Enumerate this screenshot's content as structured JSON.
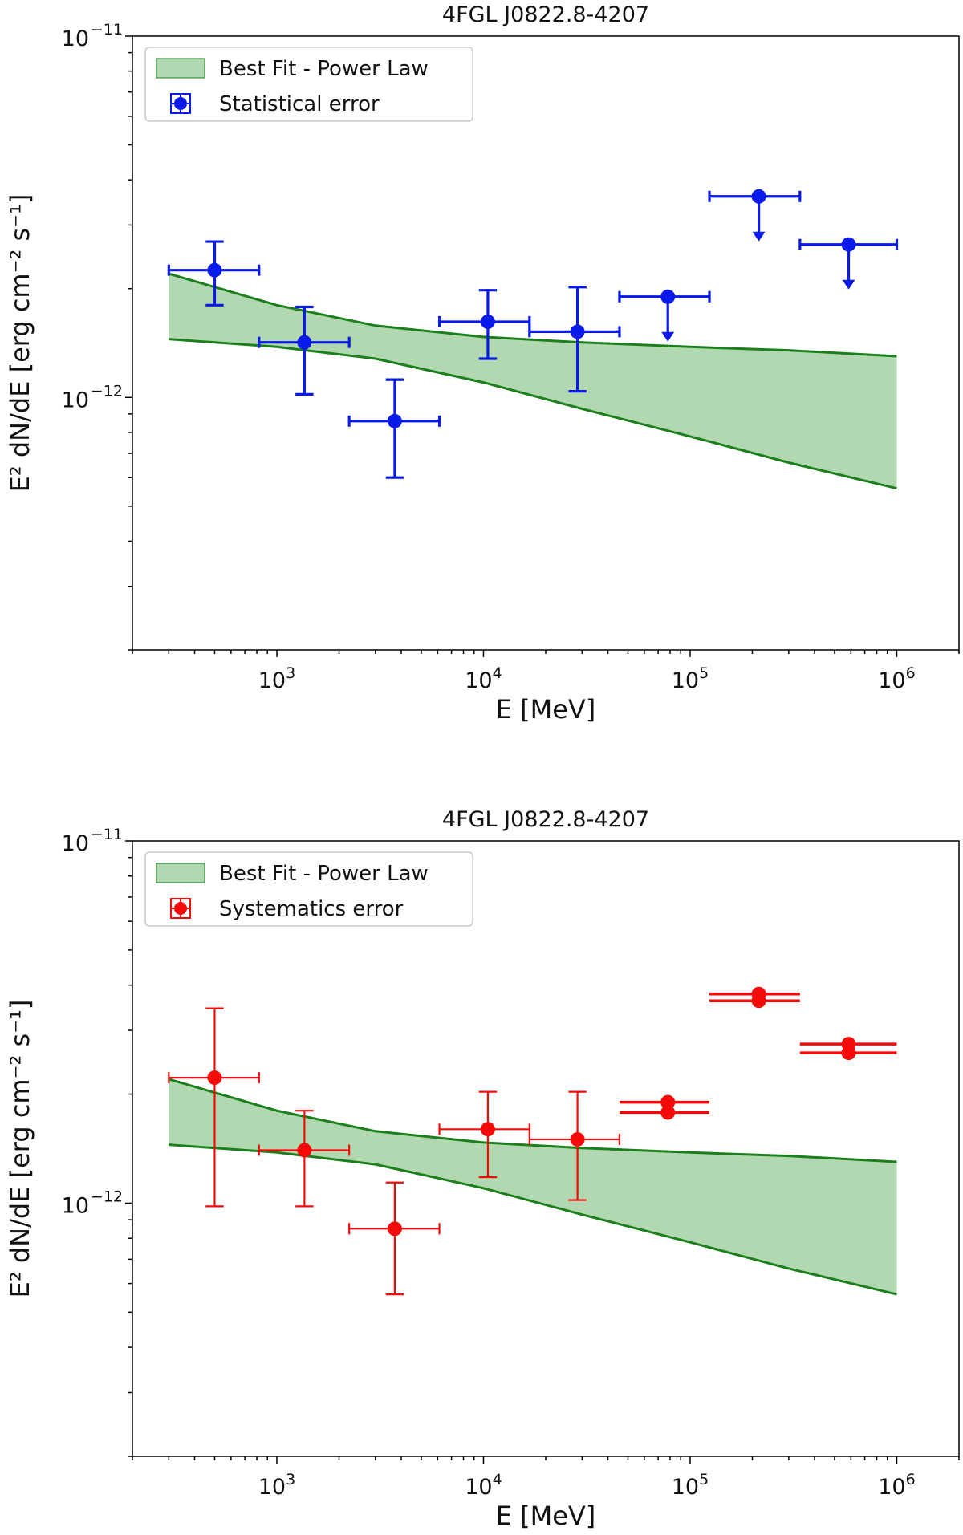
{
  "chart_data": [
    {
      "type": "scatter",
      "title": "4FGL J0822.8-4207",
      "xlabel": "E [MeV]",
      "ylabel": "E² dN/dE [erg cm⁻² s⁻¹]",
      "xscale": "log",
      "yscale": "log",
      "xlim": [
        200,
        2000000
      ],
      "ylim": [
        2e-13,
        1e-11
      ],
      "x_ticks": [
        {
          "base": "10",
          "exp": "3"
        },
        {
          "base": "10",
          "exp": "4"
        },
        {
          "base": "10",
          "exp": "5"
        },
        {
          "base": "10",
          "exp": "6"
        }
      ],
      "y_ticks": [
        {
          "base": "10",
          "exp": "−11"
        },
        {
          "base": "10",
          "exp": "−12"
        }
      ],
      "grid": false,
      "legend_position": "top-left",
      "band": {
        "name": "Best Fit - Power Law",
        "color": "#1b7f1b",
        "fill": "#b2d8b2",
        "x": [
          300,
          1000,
          3000,
          10000,
          30000,
          100000,
          300000,
          1000000
        ],
        "upper": [
          2.2e-12,
          1.8e-12,
          1.58e-12,
          1.47e-12,
          1.42e-12,
          1.38e-12,
          1.35e-12,
          1.3e-12
        ],
        "lower": [
          1.45e-12,
          1.38e-12,
          1.28e-12,
          1.1e-12,
          9.3e-13,
          7.8e-13,
          6.6e-13,
          5.6e-13
        ]
      },
      "series": [
        {
          "name": "Statistical error",
          "color": "#0a1ae8",
          "points": [
            {
              "x": 500,
              "xlo": 300,
              "xhi": 820,
              "y": 2.25e-12,
              "ylo": 1.8e-12,
              "yhi": 2.7e-12
            },
            {
              "x": 1360,
              "xlo": 820,
              "xhi": 2240,
              "y": 1.42e-12,
              "ylo": 1.02e-12,
              "yhi": 1.78e-12
            },
            {
              "x": 3720,
              "xlo": 2240,
              "xhi": 6120,
              "y": 8.6e-13,
              "ylo": 6e-13,
              "yhi": 1.12e-12
            },
            {
              "x": 10500,
              "xlo": 6120,
              "xhi": 16700,
              "y": 1.62e-12,
              "ylo": 1.28e-12,
              "yhi": 1.98e-12
            },
            {
              "x": 28500,
              "xlo": 16700,
              "xhi": 45500,
              "y": 1.52e-12,
              "ylo": 1.04e-12,
              "yhi": 2.02e-12
            },
            {
              "x": 78000,
              "xlo": 45500,
              "xhi": 124000,
              "y": 1.9e-12,
              "upper_limit": true
            },
            {
              "x": 215000,
              "xlo": 124000,
              "xhi": 340000,
              "y": 3.6e-12,
              "upper_limit": true
            },
            {
              "x": 585000,
              "xlo": 340000,
              "xhi": 1000000,
              "y": 2.65e-12,
              "upper_limit": true
            }
          ]
        }
      ]
    },
    {
      "type": "scatter",
      "title": "4FGL J0822.8-4207",
      "xlabel": "E [MeV]",
      "ylabel": "E² dN/dE [erg cm⁻² s⁻¹]",
      "xscale": "log",
      "yscale": "log",
      "xlim": [
        200,
        2000000
      ],
      "ylim": [
        2e-13,
        1e-11
      ],
      "x_ticks": [
        {
          "base": "10",
          "exp": "3"
        },
        {
          "base": "10",
          "exp": "4"
        },
        {
          "base": "10",
          "exp": "5"
        },
        {
          "base": "10",
          "exp": "6"
        }
      ],
      "y_ticks": [
        {
          "base": "10",
          "exp": "−11"
        },
        {
          "base": "10",
          "exp": "−12"
        }
      ],
      "grid": false,
      "legend_position": "top-left",
      "band": {
        "name": "Best Fit - Power Law",
        "color": "#1b7f1b",
        "fill": "#b2d8b2",
        "x": [
          300,
          1000,
          3000,
          10000,
          30000,
          100000,
          300000,
          1000000
        ],
        "upper": [
          2.2e-12,
          1.8e-12,
          1.58e-12,
          1.47e-12,
          1.42e-12,
          1.38e-12,
          1.35e-12,
          1.3e-12
        ],
        "lower": [
          1.45e-12,
          1.38e-12,
          1.28e-12,
          1.1e-12,
          9.3e-13,
          7.8e-13,
          6.6e-13,
          5.6e-13
        ]
      },
      "series": [
        {
          "name": "Systematics error",
          "color": "#f50a0a",
          "points": [
            {
              "x": 500,
              "xlo": 300,
              "xhi": 820,
              "y": 2.22e-12,
              "ylo": 9.8e-13,
              "yhi": 3.45e-12
            },
            {
              "x": 1360,
              "xlo": 820,
              "xhi": 2240,
              "y": 1.4e-12,
              "ylo": 9.8e-13,
              "yhi": 1.8e-12
            },
            {
              "x": 3720,
              "xlo": 2240,
              "xhi": 6120,
              "y": 8.5e-13,
              "ylo": 5.6e-13,
              "yhi": 1.14e-12
            },
            {
              "x": 10500,
              "xlo": 6120,
              "xhi": 16700,
              "y": 1.6e-12,
              "ylo": 1.18e-12,
              "yhi": 2.03e-12
            },
            {
              "x": 28500,
              "xlo": 16700,
              "xhi": 45500,
              "y": 1.5e-12,
              "ylo": 1.02e-12,
              "yhi": 2.03e-12
            },
            {
              "x": 78000,
              "xlo": 45500,
              "xhi": 124000,
              "y": 1.9e-12,
              "y2": 1.78e-12,
              "double": true
            },
            {
              "x": 215000,
              "xlo": 124000,
              "xhi": 340000,
              "y": 3.78e-12,
              "y2": 3.62e-12,
              "double": true
            },
            {
              "x": 585000,
              "xlo": 340000,
              "xhi": 1000000,
              "y": 2.75e-12,
              "y2": 2.6e-12,
              "double": true
            }
          ]
        }
      ]
    }
  ]
}
